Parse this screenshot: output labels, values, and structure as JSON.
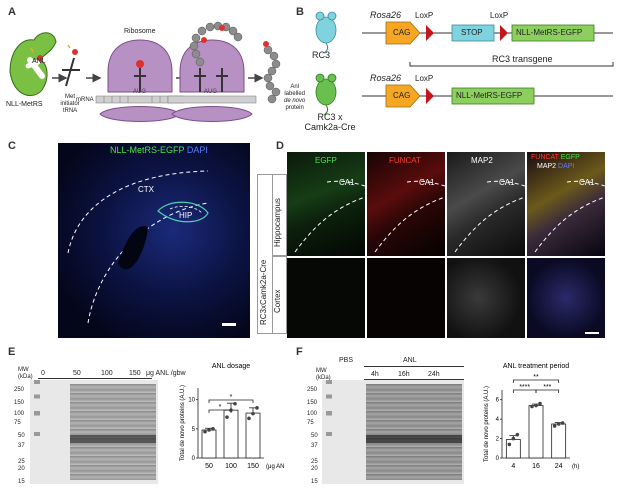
{
  "panels": {
    "a": {
      "label": "A"
    },
    "b": {
      "label": "B"
    },
    "c": {
      "label": "C"
    },
    "d": {
      "label": "D"
    },
    "e": {
      "label": "E"
    },
    "f": {
      "label": "F"
    }
  },
  "panelA": {
    "anl": "ANL",
    "nll_metrs": "NLL-MetRS",
    "trna": [
      "Met",
      "initiator",
      "tRNA"
    ],
    "ribosome": "Ribosome",
    "mrna": "mRNA",
    "codon": "AUG",
    "result": [
      "Anl",
      "labelled",
      "de novo",
      "protein"
    ]
  },
  "panelB": {
    "mouse1": "RC3",
    "mouse2": [
      "RC3 x",
      "Camk2a-Cre"
    ],
    "rosa": "Rosa26",
    "cag": "CAG",
    "loxp": "LoxP",
    "stop": "STOP",
    "egfp": "NLL-MetRS-EGFP",
    "transgene": "RC3 transgene"
  },
  "panelC": {
    "title_green": "NLL-MetRS-EGFP",
    "title_blue": "DAPI",
    "ctx": "CTX",
    "hip": "HIP"
  },
  "panelD": {
    "side_label": "RC3xCamk2a-Cre",
    "row1": "Hippocampus",
    "row2": "Cortex",
    "col_egfp": "EGFP",
    "col_funcat": "FUNCAT",
    "col_map2": "MAP2",
    "merge_funcat": "FUNCAT",
    "merge_egfp": "EGFP",
    "merge_map2": "MAP2",
    "merge_dapi": "DAPI",
    "ca1": "CA1"
  },
  "panelE": {
    "mw": [
      "MW",
      "(kDa)"
    ],
    "doses": [
      "0",
      "50",
      "100",
      "150"
    ],
    "dose_unit": "μg ANL /gbw",
    "markers": [
      "250",
      "150",
      "100",
      "75",
      "50",
      "37",
      "25",
      "20",
      "15"
    ],
    "chart_title": "ANL dosage",
    "sig": [
      "*",
      "*"
    ],
    "unit_suffix": "(μg ANL/gbw)"
  },
  "panelF": {
    "mw": [
      "MW",
      "(kDa)"
    ],
    "pbs": "PBS",
    "anl": "ANL",
    "times": [
      "4h",
      "16h",
      "24h"
    ],
    "markers": [
      "250",
      "150",
      "100",
      "75",
      "50",
      "37",
      "25",
      "20",
      "15"
    ],
    "chart_title": "ANL treatment period",
    "sig": [
      "**",
      "****",
      "***"
    ],
    "unit_suffix": "(h)"
  },
  "chart_data": [
    {
      "type": "bar",
      "title": "ANL dosage",
      "categories": [
        "50",
        "100",
        "150"
      ],
      "values": [
        4.8,
        8.2,
        7.7
      ],
      "errors": [
        0.3,
        1.2,
        0.9
      ],
      "points": [
        [
          4.5,
          4.8,
          5.0
        ],
        [
          7.0,
          8.2,
          9.3
        ],
        [
          6.8,
          7.6,
          8.6
        ]
      ],
      "xlabel": "(μg ANL/gbw)",
      "ylabel": "Total de novo proteins (A.U.)",
      "ylim": [
        0,
        12
      ],
      "yticks": [
        0,
        5,
        10
      ]
    },
    {
      "type": "bar",
      "title": "ANL treatment period",
      "categories": [
        "4",
        "16",
        "24"
      ],
      "values": [
        1.9,
        5.4,
        3.5
      ],
      "errors": [
        0.4,
        0.15,
        0.15
      ],
      "points": [
        [
          1.4,
          2.0,
          2.4
        ],
        [
          5.3,
          5.4,
          5.6
        ],
        [
          3.3,
          3.5,
          3.6
        ]
      ],
      "xlabel": "(h)",
      "ylabel": "Total de novo proteins (A.U.)",
      "ylim": [
        0,
        7
      ],
      "yticks": [
        0,
        2,
        4,
        6
      ]
    }
  ]
}
